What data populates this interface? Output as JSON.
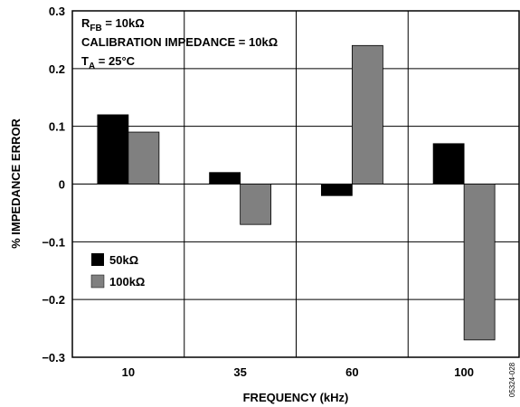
{
  "chart_data": {
    "type": "bar",
    "xlabel": "FREQUENCY (kHz)",
    "ylabel": "% IMPEDANCE ERROR",
    "categories": [
      "10",
      "35",
      "60",
      "100"
    ],
    "ylim": [
      -0.3,
      0.3
    ],
    "yticks": [
      "0.3",
      "0.2",
      "0.1",
      "0",
      "−0.1",
      "−0.2",
      "−0.3"
    ],
    "ytick_values": [
      0.3,
      0.2,
      0.1,
      0,
      -0.1,
      -0.2,
      -0.3
    ],
    "grid": true,
    "legend_position": "left-lower",
    "series": [
      {
        "name": "50kΩ",
        "color": "#000000",
        "values": [
          0.12,
          0.02,
          -0.02,
          0.07
        ]
      },
      {
        "name": "100kΩ",
        "color": "#808080",
        "values": [
          0.09,
          -0.07,
          0.24,
          -0.27
        ]
      }
    ],
    "annotations": {
      "rfb_main": "R",
      "rfb_sub": "FB",
      "rfb_rest": " = 10kΩ",
      "calibration": "CALIBRATION IMPEDANCE = 10kΩ",
      "ta_main": "T",
      "ta_sub": "A",
      "ta_rest": " = 25°C"
    },
    "figure_id": "05324-028"
  }
}
